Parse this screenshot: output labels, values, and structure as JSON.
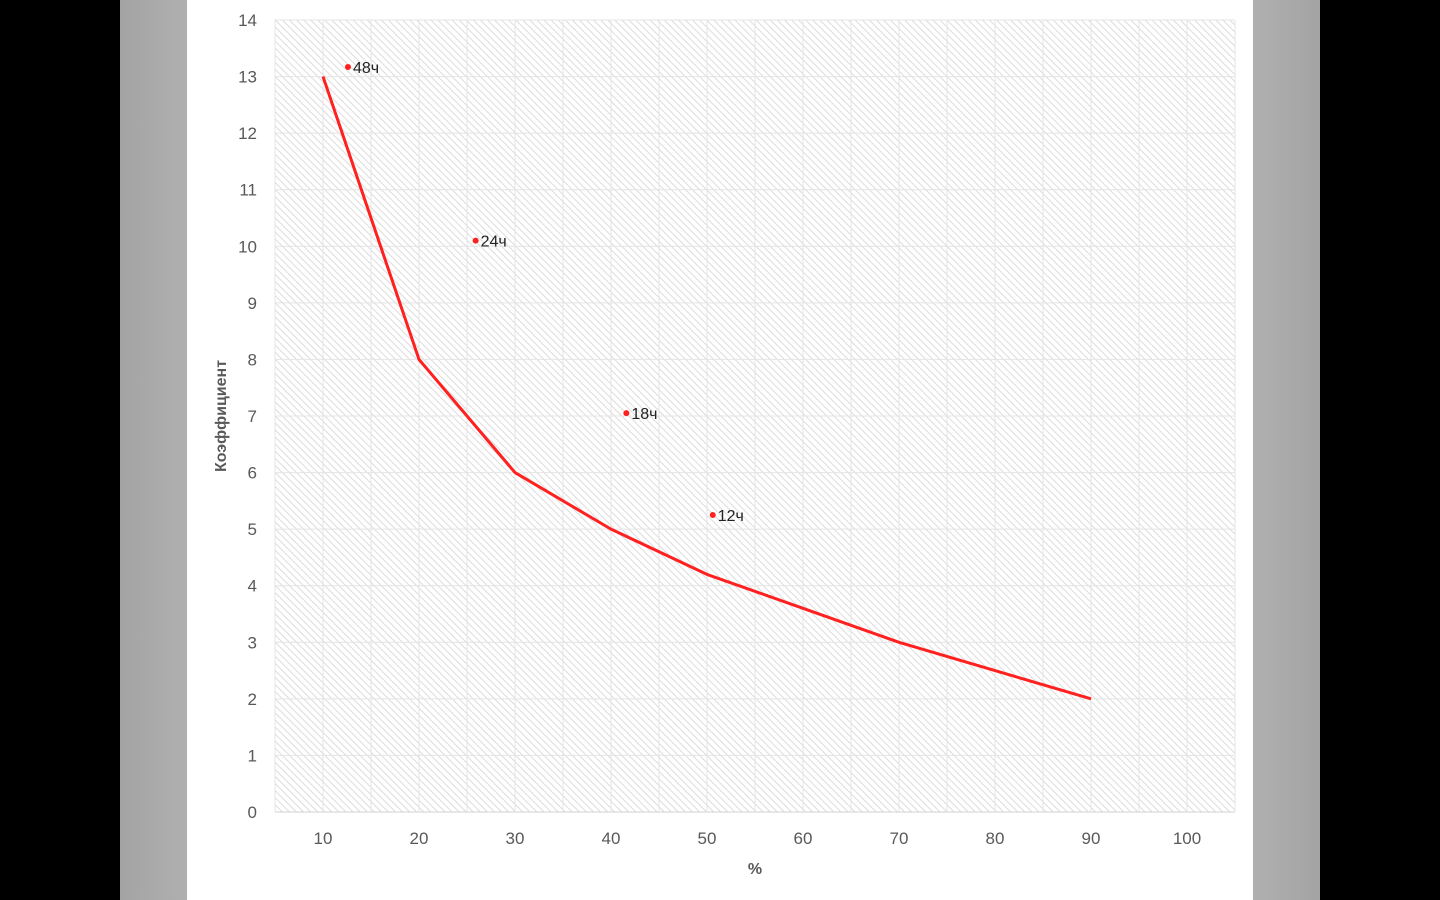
{
  "chart_data": {
    "type": "line",
    "title": "",
    "xlabel": "%",
    "ylabel": "Коэффициент",
    "xlim": [
      5,
      105
    ],
    "ylim": [
      0,
      14
    ],
    "xticks": [
      10,
      20,
      30,
      40,
      50,
      60,
      70,
      80,
      90,
      100
    ],
    "yticks": [
      0,
      1,
      2,
      3,
      4,
      5,
      6,
      7,
      8,
      9,
      10,
      11,
      12,
      13,
      14
    ],
    "grid": true,
    "line_color": "#ff2020",
    "series": [
      {
        "type": "line",
        "x": [
          10,
          20,
          30,
          40,
          50,
          60,
          70,
          80,
          90
        ],
        "y": [
          13,
          8,
          6,
          5,
          4.2,
          3.6,
          3,
          2.5,
          2
        ]
      }
    ],
    "points": [
      {
        "x": 12.6,
        "y": 13.17,
        "label": "48ч"
      },
      {
        "x": 25.9,
        "y": 10.1,
        "label": "24ч"
      },
      {
        "x": 41.6,
        "y": 7.05,
        "label": "18ч"
      },
      {
        "x": 50.6,
        "y": 5.25,
        "label": "12ч"
      }
    ]
  }
}
